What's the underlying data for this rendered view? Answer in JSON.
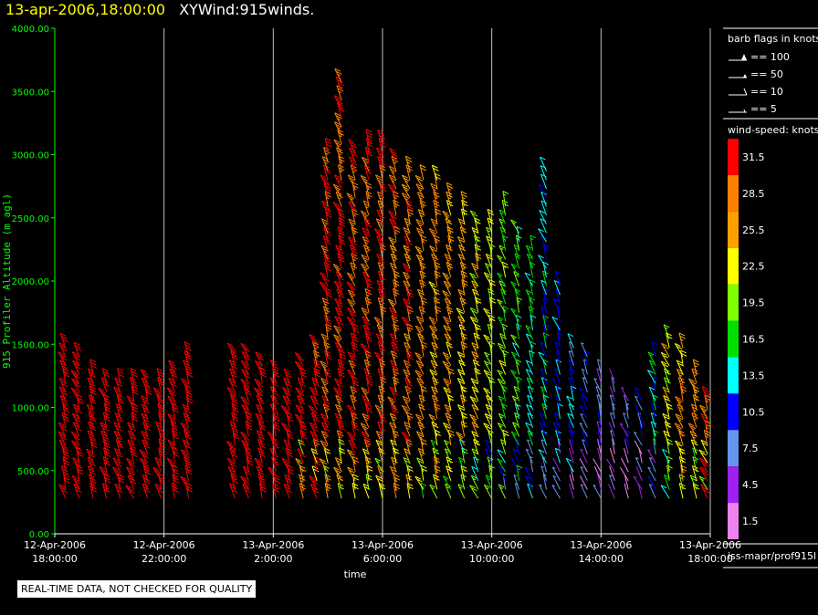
{
  "header": {
    "datetime": "13-apr-2006,18:00:00",
    "name": "XYWind:915winds."
  },
  "notice": "REAL-TIME DATA, NOT CHECKED FOR QUALITY",
  "source": "iss-mapr/prof915l",
  "barb_legend": {
    "title": "barb flags in knots",
    "items": [
      "== 100",
      "== 50",
      "== 10",
      "== 5"
    ]
  },
  "color_legend": {
    "title": "wind-speed: knots",
    "levels": [
      {
        "label": "31.5",
        "color": "#ff0000"
      },
      {
        "label": "28.5",
        "color": "#ff8000"
      },
      {
        "label": "25.5",
        "color": "#ffa000"
      },
      {
        "label": "22.5",
        "color": "#ffff00"
      },
      {
        "label": "19.5",
        "color": "#80ff00"
      },
      {
        "label": "16.5",
        "color": "#00e000"
      },
      {
        "label": "13.5",
        "color": "#00ffff"
      },
      {
        "label": "10.5",
        "color": "#0000ff"
      },
      {
        "label": "7.5",
        "color": "#6495ed"
      },
      {
        "label": "4.5",
        "color": "#a020f0"
      },
      {
        "label": "1.5",
        "color": "#ee82ee"
      }
    ]
  },
  "chart_data": {
    "type": "scatter",
    "ylabel": "915 Profiler Altitude (m agl)",
    "xlabel": "time",
    "ylim": [
      0,
      4000
    ],
    "y_ticks": [
      "0.00",
      "500.00",
      "1000.00",
      "1500.00",
      "2000.00",
      "2500.00",
      "3000.00",
      "3500.00",
      "4000.00"
    ],
    "xlim_hours": [
      18,
      42
    ],
    "x_ticks": [
      {
        "hour": 18,
        "date": "12-Apr-2006",
        "time": "18:00:00"
      },
      {
        "hour": 22,
        "date": "12-Apr-2006",
        "time": "22:00:00"
      },
      {
        "hour": 26,
        "date": "13-Apr-2006",
        "time": "2:00:00"
      },
      {
        "hour": 30,
        "date": "13-Apr-2006",
        "time": "6:00:00"
      },
      {
        "hour": 34,
        "date": "13-Apr-2006",
        "time": "10:00:00"
      },
      {
        "hour": 38,
        "date": "13-Apr-2006",
        "time": "14:00:00"
      },
      {
        "hour": 42,
        "date": "13-Apr-2006",
        "time": "18:00:00"
      }
    ],
    "grid": "vertical",
    "profiles": [
      {
        "hour": 18.4,
        "top": 1500,
        "speed": 34
      },
      {
        "hour": 18.9,
        "top": 1400,
        "speed": 34
      },
      {
        "hour": 19.4,
        "top": 1300,
        "speed": 34
      },
      {
        "hour": 19.9,
        "top": 1250,
        "speed": 34
      },
      {
        "hour": 20.4,
        "top": 1250,
        "speed": 34
      },
      {
        "hour": 20.9,
        "top": 1250,
        "speed": 34
      },
      {
        "hour": 21.4,
        "top": 1250,
        "speed": 34
      },
      {
        "hour": 21.9,
        "top": 1250,
        "speed": 34
      },
      {
        "hour": 22.4,
        "top": 1300,
        "speed": 34
      },
      {
        "hour": 22.9,
        "top": 1400,
        "speed": 34
      },
      {
        "hour": 24.6,
        "top": 1450,
        "speed": 34
      },
      {
        "hour": 25.1,
        "top": 1400,
        "speed": 34
      },
      {
        "hour": 25.6,
        "top": 1350,
        "speed": 34
      },
      {
        "hour": 26.1,
        "top": 1300,
        "speed": 34
      },
      {
        "hour": 26.6,
        "top": 1250,
        "speed": 34
      },
      {
        "hour": 27.1,
        "top": 1350,
        "speed": 33
      },
      {
        "hour": 27.6,
        "top": 1500,
        "speed": 32
      },
      {
        "hour": 28.0,
        "top": 3050,
        "speed": 30
      },
      {
        "hour": 28.5,
        "top": 3600,
        "speed": 30
      },
      {
        "hour": 29.0,
        "top": 3050,
        "speed": 30
      },
      {
        "hour": 29.5,
        "top": 3100,
        "speed": 30
      },
      {
        "hour": 30.0,
        "top": 3100,
        "speed": 30
      },
      {
        "hour": 30.5,
        "top": 3000,
        "speed": 29
      },
      {
        "hour": 31.0,
        "top": 2900,
        "speed": 28
      },
      {
        "hour": 31.5,
        "top": 2800,
        "speed": 27
      },
      {
        "hour": 32.0,
        "top": 2800,
        "speed": 26
      },
      {
        "hour": 32.5,
        "top": 2700,
        "speed": 25
      },
      {
        "hour": 33.0,
        "top": 2600,
        "speed": 24
      },
      {
        "hour": 33.5,
        "top": 2500,
        "speed": 23
      },
      {
        "hour": 34.0,
        "top": 2500,
        "speed": 21
      },
      {
        "hour": 34.5,
        "top": 2600,
        "speed": 19
      },
      {
        "hour": 35.0,
        "top": 2400,
        "speed": 17
      },
      {
        "hour": 35.5,
        "top": 2300,
        "speed": 15
      },
      {
        "hour": 36.0,
        "top": 2900,
        "speed": 13
      },
      {
        "hour": 36.5,
        "top": 2000,
        "speed": 12
      },
      {
        "hour": 37.0,
        "top": 1500,
        "speed": 11
      },
      {
        "hour": 37.5,
        "top": 1400,
        "speed": 9
      },
      {
        "hour": 38.0,
        "top": 1300,
        "speed": 8
      },
      {
        "hour": 38.5,
        "top": 1200,
        "speed": 7
      },
      {
        "hour": 39.0,
        "top": 1100,
        "speed": 8
      },
      {
        "hour": 39.5,
        "top": 1050,
        "speed": 9
      },
      {
        "hour": 40.0,
        "top": 1400,
        "speed": 14
      },
      {
        "hour": 40.5,
        "top": 1600,
        "speed": 22
      },
      {
        "hour": 41.0,
        "top": 1500,
        "speed": 26
      },
      {
        "hour": 41.5,
        "top": 1300,
        "speed": 27
      },
      {
        "hour": 41.9,
        "top": 1100,
        "speed": 29
      }
    ]
  }
}
